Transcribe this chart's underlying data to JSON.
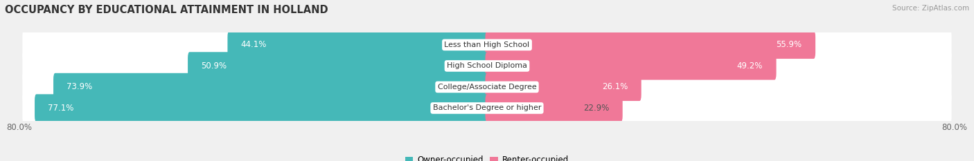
{
  "title": "OCCUPANCY BY EDUCATIONAL ATTAINMENT IN HOLLAND",
  "source": "Source: ZipAtlas.com",
  "categories": [
    "Less than High School",
    "High School Diploma",
    "College/Associate Degree",
    "Bachelor's Degree or higher"
  ],
  "owner_values": [
    44.1,
    50.9,
    73.9,
    77.1
  ],
  "renter_values": [
    55.9,
    49.2,
    26.1,
    22.9
  ],
  "owner_color": "#45b8b8",
  "renter_color": "#f07898",
  "background_color": "#f0f0f0",
  "bar_bg_color": "#ffffff",
  "bar_height": 0.72,
  "xlim_left": -100.0,
  "xlim_right": 100.0,
  "legend_owner": "Owner-occupied",
  "legend_renter": "Renter-occupied",
  "title_fontsize": 10.5,
  "label_fontsize": 8.5,
  "cat_fontsize": 8.0,
  "tick_fontsize": 8.5,
  "source_fontsize": 7.5,
  "pct_label_color_white": "#ffffff",
  "pct_label_color_dark": "#555555"
}
